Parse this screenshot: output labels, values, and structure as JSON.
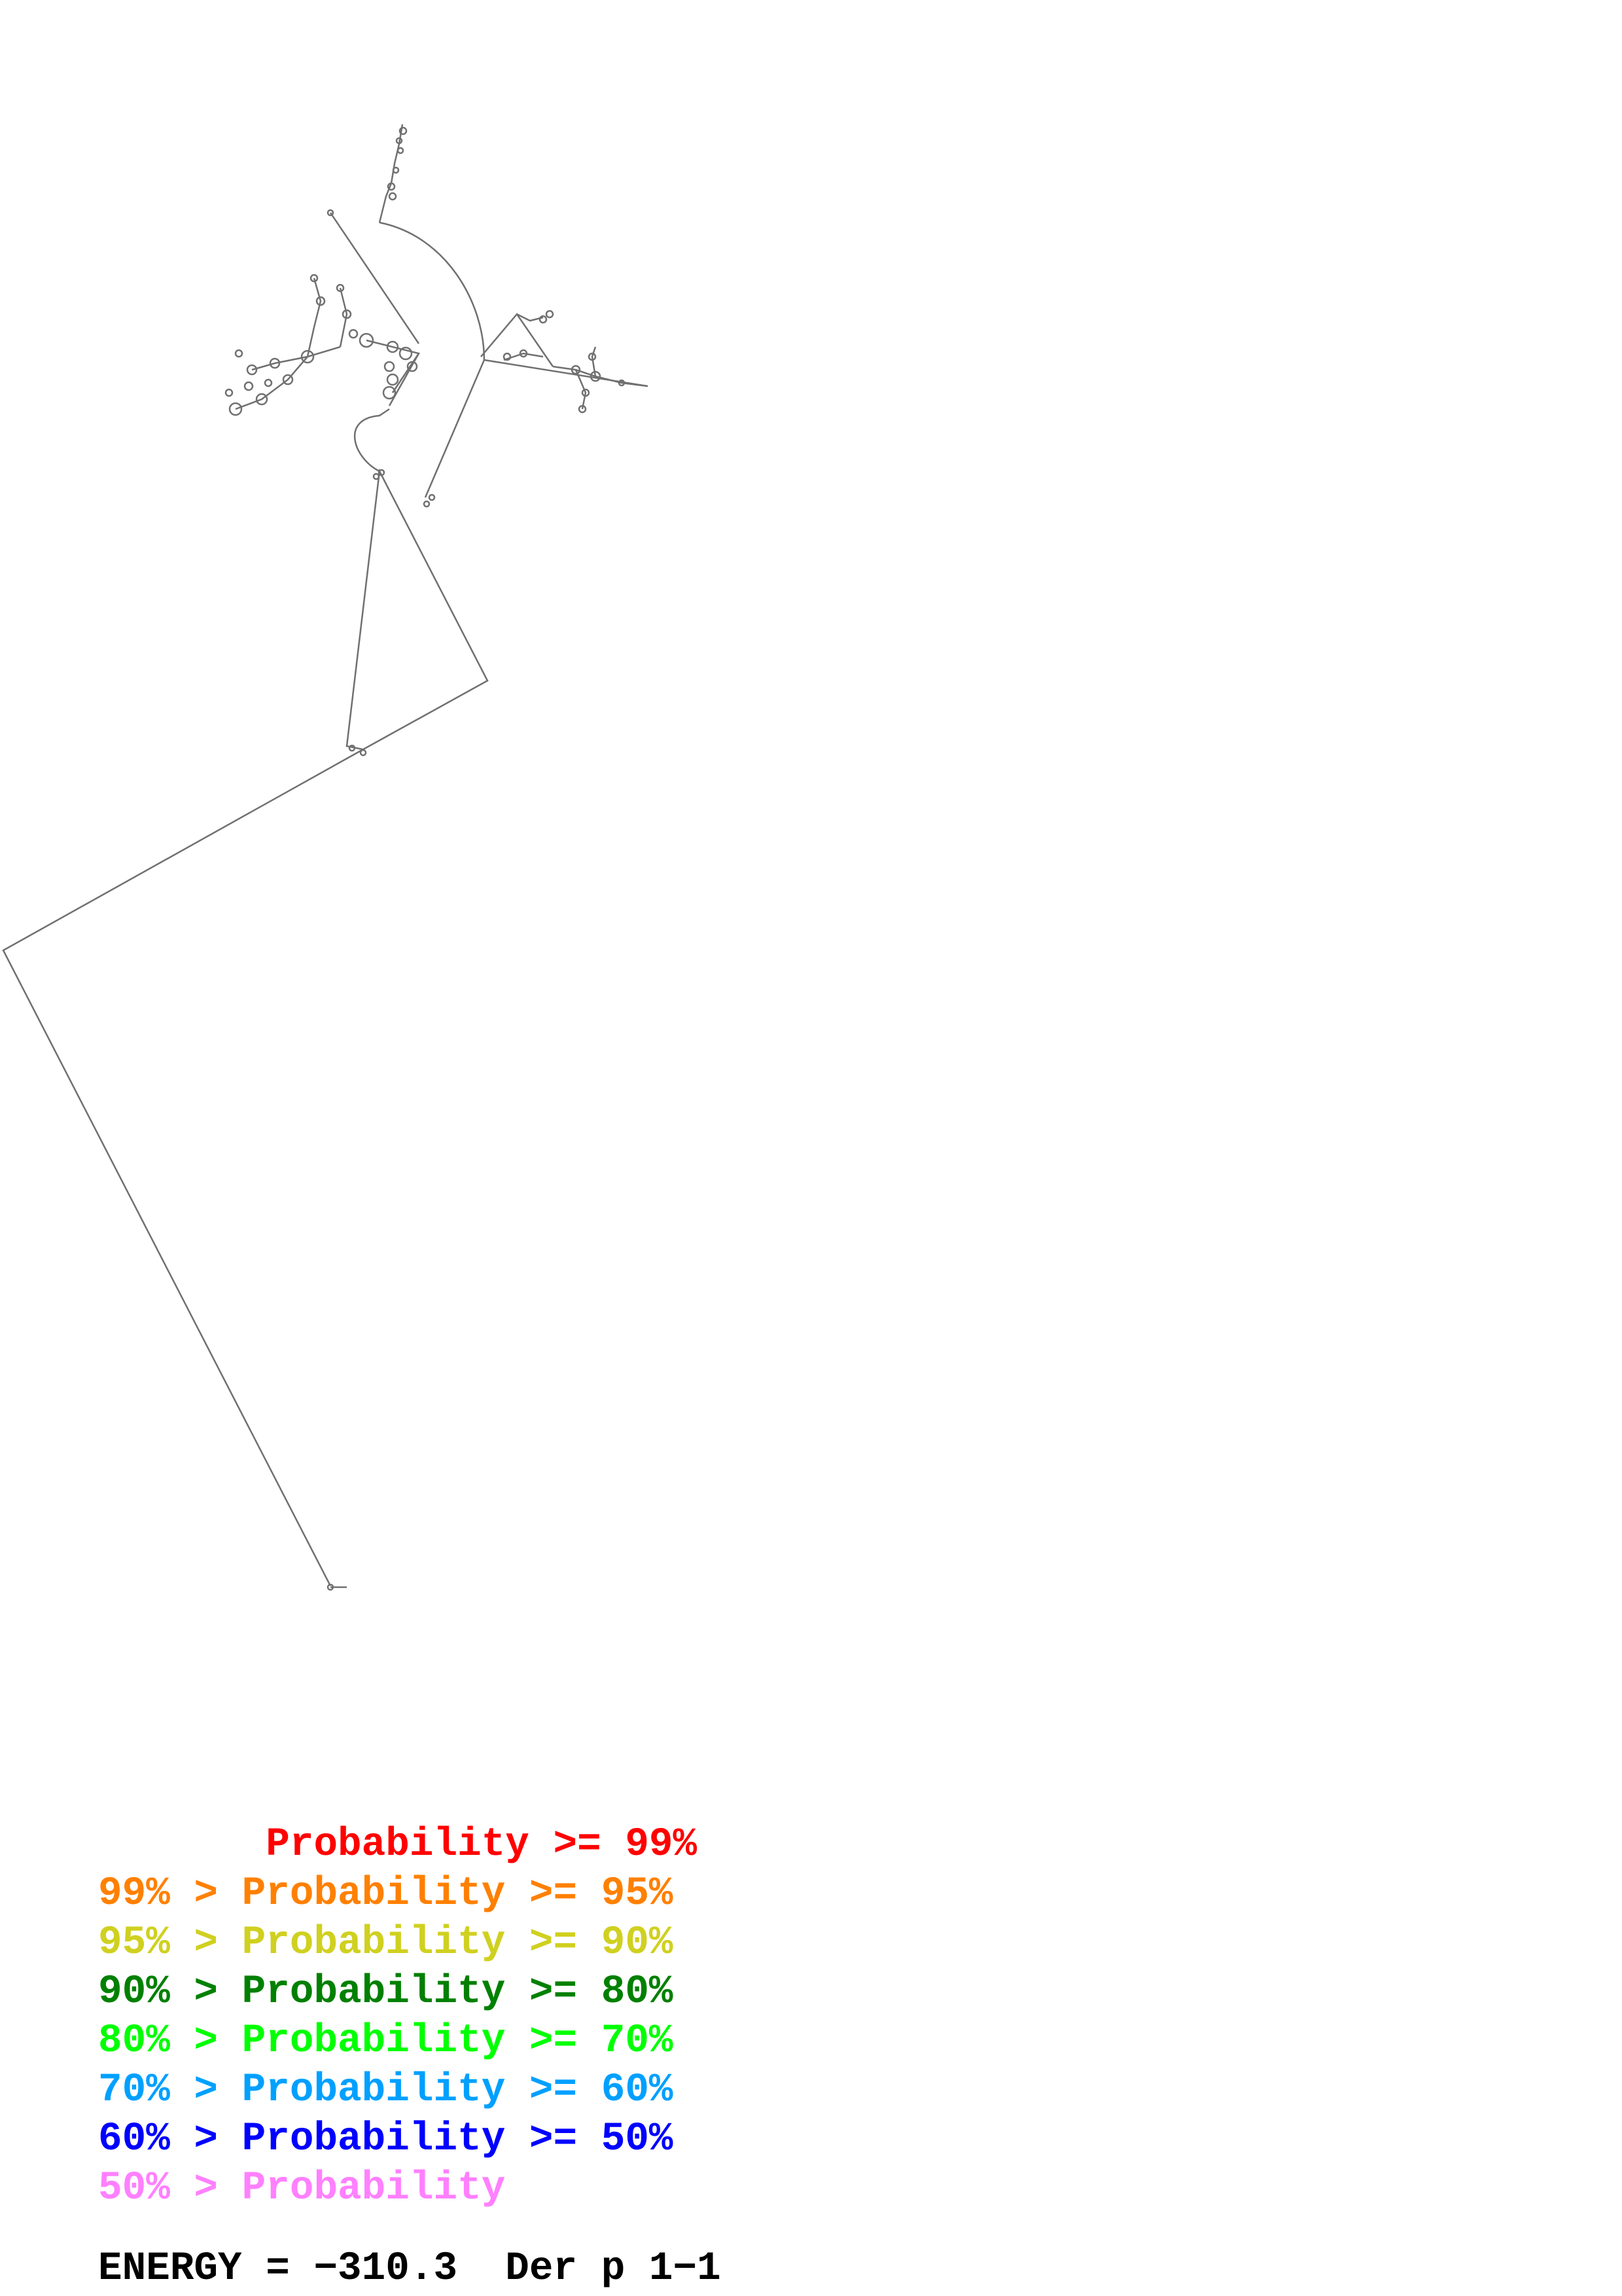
{
  "legend": [
    {
      "text": "       Probability >= 99%",
      "color": "#ff0000"
    },
    {
      "text": "99% > Probability >= 95%",
      "color": "#ff8000"
    },
    {
      "text": "95% > Probability >= 90%",
      "color": "#d0d020"
    },
    {
      "text": "90% > Probability >= 80%",
      "color": "#008000"
    },
    {
      "text": "80% > Probability >= 70%",
      "color": "#00ff00"
    },
    {
      "text": "70% > Probability >= 60%",
      "color": "#00a0ff"
    },
    {
      "text": "60% > Probability >= 50%",
      "color": "#0000ff"
    },
    {
      "text": "50% > Probability",
      "color": "#ff80ff"
    }
  ],
  "energy_label": "ENERGY = −310.3  Der p 1−1",
  "colors": {
    "structure_line": "#707070",
    "background": "#ffffff"
  }
}
